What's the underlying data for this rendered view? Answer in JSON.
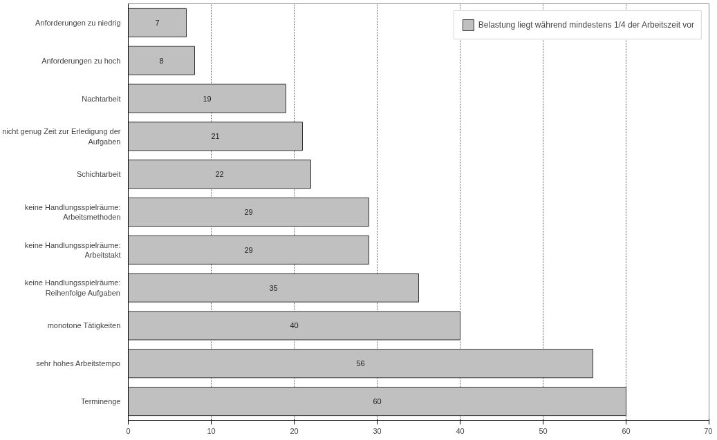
{
  "chart_data": {
    "type": "bar",
    "orientation": "horizontal",
    "categories": [
      "Anforderungen zu niedrig",
      "Anforderungen zu hoch",
      "Nachtarbeit",
      "nicht genug Zeit zur Erledigung der Aufgaben",
      "Schichtarbeit",
      "keine Handlungsspielräume: Arbeitsmethoden",
      "keine Handlungsspielräume: Arbeitstakt",
      "keine Handlungsspielräume: Reihenfolge Aufgaben",
      "monotone Tätigkeiten",
      "sehr hohes Arbeitstempo",
      "Terminenge"
    ],
    "series": [
      {
        "name": "Belastung liegt während mindestens 1/4 der Arbeitszeit vor",
        "color": "#c0c0c0",
        "values": [
          7,
          8,
          19,
          21,
          22,
          29,
          29,
          35,
          40,
          56,
          60
        ]
      }
    ],
    "xlim": [
      0,
      70
    ],
    "xticks": [
      0,
      10,
      20,
      30,
      40,
      50,
      60,
      70
    ],
    "grid": "x",
    "legend": "top right",
    "data_labels": true
  }
}
